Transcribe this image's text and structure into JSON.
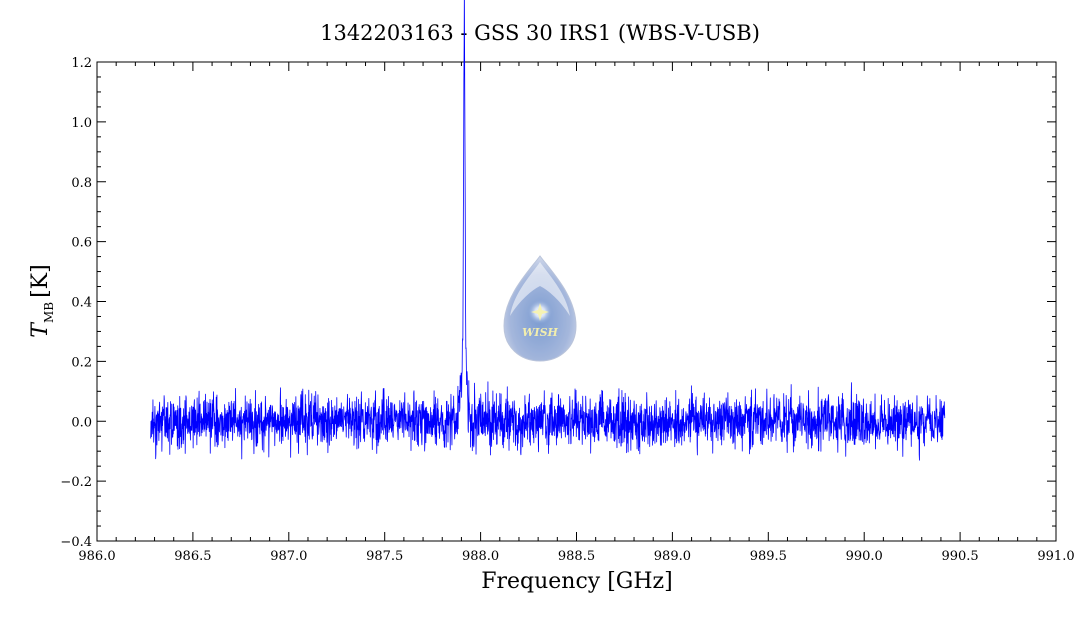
{
  "chart_data": {
    "type": "line",
    "title": "1342203163 - GSS 30 IRS1 (WBS-V-USB)",
    "xlabel": "Frequency [GHz]",
    "ylabel_main": "T",
    "ylabel_sub": "MB",
    "ylabel_unit": "[K]",
    "xlim": [
      986.0,
      991.0
    ],
    "ylim": [
      -0.4,
      1.2
    ],
    "xticks": [
      "986.0",
      "986.5",
      "987.0",
      "987.5",
      "988.0",
      "988.5",
      "989.0",
      "989.5",
      "990.0",
      "990.5",
      "991.0"
    ],
    "yticks": [
      "-0.4",
      "-0.2",
      "0.0",
      "0.2",
      "0.4",
      "0.6",
      "0.8",
      "1.0",
      "1.2"
    ],
    "grid": false,
    "series_color": "#0000ff",
    "data_range_x": [
      986.28,
      990.42
    ],
    "noise_rms": 0.045,
    "features": [
      {
        "x": 987.915,
        "y": 1.15,
        "note": "narrow emission peak"
      },
      {
        "x": 987.91,
        "y": 0.35,
        "note": "broad wing"
      }
    ],
    "watermark_text": "WISH"
  }
}
